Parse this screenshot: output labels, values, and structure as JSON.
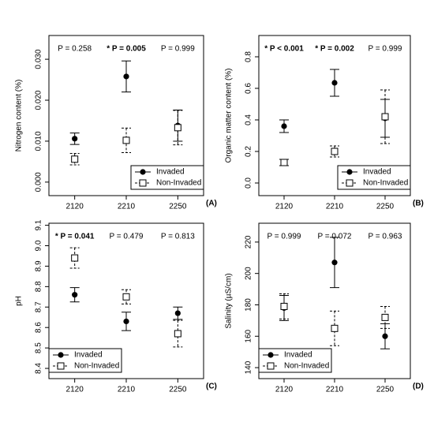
{
  "chart_data": [
    {
      "type": "errorbar",
      "panel_label": "(A)",
      "ylabel": "Nitrogen content (%)",
      "categories": [
        "2120",
        "2210",
        "2250"
      ],
      "annotations": [
        {
          "text": "P = 0.258",
          "bold": false
        },
        {
          "text": "* P = 0.005",
          "bold": true
        },
        {
          "text": "P = 0.999",
          "bold": false
        }
      ],
      "series": [
        {
          "name": "Invaded",
          "color": "#000000",
          "marker": "circle",
          "dashed": false,
          "values": [
            0.0106,
            0.0258,
            0.0138
          ],
          "errors": [
            0.0014,
            0.0038,
            0.0038
          ]
        },
        {
          "name": "Non-Invaded",
          "color": "#000000",
          "marker": "square",
          "dashed": true,
          "values": [
            0.0056,
            0.0102,
            0.0133
          ],
          "errors": [
            0.0014,
            0.003,
            0.0042
          ]
        }
      ],
      "ylim": [
        -0.0033,
        0.0358
      ],
      "yticks": [
        {
          "value": 0,
          "label": "0.000"
        },
        {
          "value": 0.01,
          "label": "0.010"
        },
        {
          "value": 0.02,
          "label": "0.020"
        },
        {
          "value": 0.03,
          "label": "0.030"
        }
      ],
      "legend": "bottom-right"
    },
    {
      "type": "errorbar",
      "panel_label": "(B)",
      "ylabel": "Organic matter content (%)",
      "categories": [
        "2120",
        "2210",
        "2250"
      ],
      "annotations": [
        {
          "text": "* P < 0.001",
          "bold": true
        },
        {
          "text": "* P = 0.002",
          "bold": true
        },
        {
          "text": "P = 0.999",
          "bold": false
        }
      ],
      "series": [
        {
          "name": "Invaded",
          "color": "#000000",
          "marker": "circle",
          "dashed": false,
          "values": [
            0.36,
            0.635,
            0.41
          ],
          "errors": [
            0.04,
            0.085,
            0.12
          ]
        },
        {
          "name": "Non-Invaded",
          "color": "#000000",
          "marker": "square",
          "dashed": true,
          "values": [
            0.13,
            0.2,
            0.42
          ],
          "errors": [
            0.02,
            0.035,
            0.17
          ]
        }
      ],
      "ylim": [
        -0.08,
        0.935
      ],
      "yticks": [
        {
          "value": 0,
          "label": "0.0"
        },
        0.2,
        0.4,
        0.6,
        0.8
      ],
      "legend": "bottom-right"
    },
    {
      "type": "errorbar",
      "panel_label": "(C)",
      "ylabel": "pH",
      "categories": [
        "2120",
        "2210",
        "2250"
      ],
      "annotations": [
        {
          "text": "* P = 0.041",
          "bold": true
        },
        {
          "text": "P = 0.479",
          "bold": false
        },
        {
          "text": "P = 0.813",
          "bold": false
        }
      ],
      "series": [
        {
          "name": "Invaded",
          "color": "#000000",
          "marker": "circle",
          "dashed": false,
          "values": [
            8.76,
            8.63,
            8.67
          ],
          "errors": [
            0.035,
            0.045,
            0.03
          ]
        },
        {
          "name": "Non-Invaded",
          "color": "#000000",
          "marker": "square",
          "dashed": true,
          "values": [
            8.94,
            8.75,
            8.57
          ],
          "errors": [
            0.05,
            0.035,
            0.065
          ]
        }
      ],
      "ylim": [
        8.35,
        9.11
      ],
      "yticks": [
        8.4,
        8.5,
        8.6,
        8.7,
        8.8,
        8.9,
        {
          "value": 9,
          "label": "9.0"
        },
        9.1
      ],
      "legend": "bottom-left"
    },
    {
      "type": "errorbar",
      "panel_label": "(D)",
      "ylabel": "Salinity (µS/cm)",
      "categories": [
        "2120",
        "2210",
        "2250"
      ],
      "annotations": [
        {
          "text": "P = 0.999",
          "bold": false
        },
        {
          "text": "P = 0.072",
          "bold": false
        },
        {
          "text": "P = 0.963",
          "bold": false
        }
      ],
      "series": [
        {
          "name": "Invaded",
          "color": "#000000",
          "marker": "circle",
          "dashed": false,
          "values": [
            178,
            207,
            160
          ],
          "errors": [
            8,
            16,
            8
          ]
        },
        {
          "name": "Non-Invaded",
          "color": "#000000",
          "marker": "square",
          "dashed": true,
          "values": [
            179,
            165,
            172
          ],
          "errors": [
            8,
            11,
            7
          ]
        }
      ],
      "ylim": [
        133,
        232
      ],
      "yticks": [
        140,
        160,
        180,
        200,
        220
      ],
      "legend": "bottom-left"
    }
  ]
}
